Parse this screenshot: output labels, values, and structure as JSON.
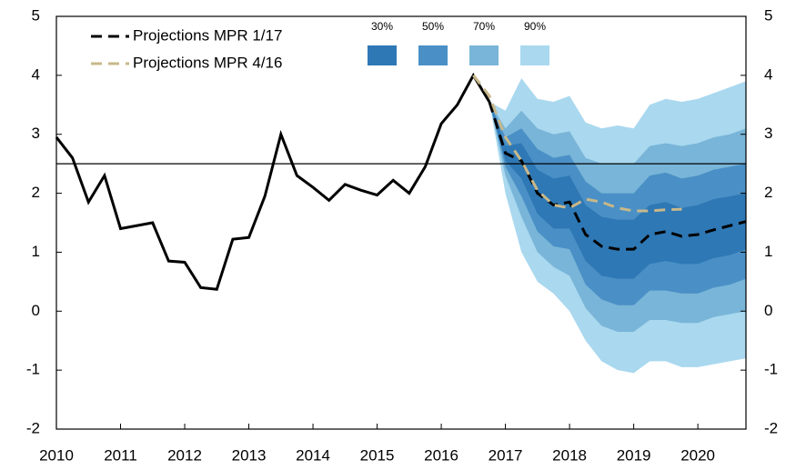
{
  "chart_data": {
    "type": "fan",
    "xlim": [
      2010,
      2020.75
    ],
    "xticks": [
      2010,
      2011,
      2012,
      2013,
      2014,
      2015,
      2016,
      2017,
      2018,
      2019,
      2020
    ],
    "ylim": [
      -2,
      5
    ],
    "yticks": [
      -2,
      -1,
      0,
      1,
      2,
      3,
      4,
      5
    ],
    "y2lim": [
      -2,
      5
    ],
    "y2ticks": [
      -2,
      -1,
      0,
      1,
      2,
      3,
      4,
      5
    ],
    "hline": 2.5,
    "series": [
      {
        "color": "#000000",
        "dash": false,
        "x": [
          2010,
          2010.25,
          2010.5,
          2010.75,
          2011,
          2011.25,
          2011.5,
          2011.75,
          2012,
          2012.25,
          2012.5,
          2012.75,
          2013,
          2013.25,
          2013.5,
          2013.75,
          2014,
          2014.25,
          2014.5,
          2014.75,
          2015,
          2015.25,
          2015.5,
          2015.75,
          2016,
          2016.25,
          2016.5,
          2016.75
        ],
        "values": [
          2.95,
          2.6,
          1.85,
          2.3,
          1.4,
          1.45,
          1.5,
          0.85,
          0.83,
          0.4,
          0.37,
          1.22,
          1.25,
          1.95,
          3.0,
          2.3,
          2.1,
          1.88,
          2.15,
          2.05,
          1.97,
          2.22,
          2.0,
          2.45,
          3.18,
          3.5,
          4.0,
          3.55
        ]
      },
      {
        "name": "Projections MPR 1/17",
        "color": "#000000",
        "dash": true,
        "x": [
          2016.75,
          2017,
          2017.25,
          2017.5,
          2017.75,
          2018,
          2018.25,
          2018.5,
          2018.75,
          2019,
          2019.25,
          2019.5,
          2019.75,
          2020,
          2020.25,
          2020.5,
          2020.75
        ],
        "values": [
          3.55,
          2.68,
          2.55,
          2.0,
          1.8,
          1.85,
          1.3,
          1.1,
          1.05,
          1.05,
          1.3,
          1.35,
          1.27,
          1.3,
          1.38,
          1.45,
          1.52
        ]
      },
      {
        "name": "Projections MPR 4/16",
        "color": "#c8b88a",
        "dash": true,
        "x": [
          2016.5,
          2016.75,
          2017,
          2017.25,
          2017.5,
          2017.75,
          2018,
          2018.25,
          2018.5,
          2018.75,
          2019,
          2019.25,
          2019.5,
          2019.75
        ],
        "values": [
          4.0,
          3.65,
          2.95,
          2.55,
          2.05,
          1.8,
          1.75,
          1.9,
          1.85,
          1.75,
          1.7,
          1.7,
          1.72,
          1.73
        ]
      }
    ],
    "fan": {
      "x": [
        2016.75,
        2017,
        2017.25,
        2017.5,
        2017.75,
        2018,
        2018.25,
        2018.5,
        2018.75,
        2019,
        2019.25,
        2019.5,
        2019.75,
        2020,
        2020.25,
        2020.5,
        2020.75
      ],
      "bands": [
        {
          "name": "90%",
          "color": "#a9d8ef",
          "upper": [
            3.55,
            3.4,
            3.95,
            3.6,
            3.55,
            3.65,
            3.2,
            3.1,
            3.15,
            3.1,
            3.5,
            3.6,
            3.55,
            3.6,
            3.7,
            3.8,
            3.9
          ],
          "lower": [
            3.55,
            2.0,
            1.0,
            0.5,
            0.3,
            0.0,
            -0.5,
            -0.85,
            -1.0,
            -1.05,
            -0.85,
            -0.85,
            -0.95,
            -0.95,
            -0.9,
            -0.85,
            -0.8
          ]
        },
        {
          "name": "70%",
          "color": "#79b5d8",
          "upper": [
            3.55,
            3.1,
            3.4,
            3.1,
            3.0,
            3.05,
            2.6,
            2.5,
            2.5,
            2.5,
            2.8,
            2.85,
            2.8,
            2.85,
            2.95,
            3.0,
            3.1
          ],
          "lower": [
            3.55,
            2.3,
            1.6,
            1.0,
            0.75,
            0.6,
            0.05,
            -0.25,
            -0.35,
            -0.35,
            -0.15,
            -0.15,
            -0.2,
            -0.2,
            -0.1,
            -0.05,
            0.0
          ]
        },
        {
          "name": "50%",
          "color": "#4a90c6",
          "upper": [
            3.55,
            2.95,
            3.1,
            2.75,
            2.6,
            2.65,
            2.2,
            2.0,
            2.0,
            2.0,
            2.3,
            2.35,
            2.25,
            2.3,
            2.4,
            2.45,
            2.5
          ],
          "lower": [
            3.55,
            2.45,
            1.95,
            1.35,
            1.1,
            1.05,
            0.45,
            0.2,
            0.1,
            0.1,
            0.35,
            0.35,
            0.3,
            0.3,
            0.4,
            0.45,
            0.55
          ]
        },
        {
          "name": "30%",
          "color": "#2e78b5",
          "upper": [
            3.55,
            2.8,
            2.85,
            2.4,
            2.25,
            2.3,
            1.8,
            1.6,
            1.55,
            1.55,
            1.8,
            1.85,
            1.75,
            1.8,
            1.9,
            1.95,
            2.0
          ],
          "lower": [
            3.55,
            2.55,
            2.25,
            1.65,
            1.4,
            1.4,
            0.85,
            0.6,
            0.55,
            0.55,
            0.8,
            0.85,
            0.8,
            0.8,
            0.9,
            0.95,
            1.05
          ]
        }
      ]
    }
  }
}
